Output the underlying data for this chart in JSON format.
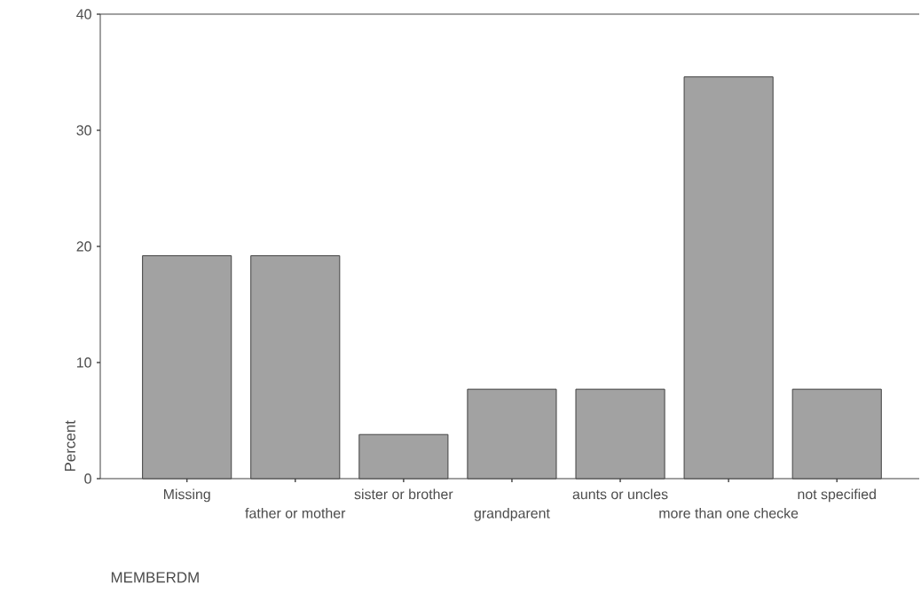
{
  "chart_data": {
    "type": "bar",
    "xlabel": "MEMBERDM",
    "ylabel": "Percent",
    "categories": [
      "Missing",
      "father or mother",
      "sister or brother",
      "grandparent",
      "aunts or uncles",
      "more than one checke",
      "not specified"
    ],
    "values": [
      19.2,
      19.2,
      3.8,
      7.7,
      7.7,
      34.6,
      7.7
    ],
    "color": "#a2a2a2",
    "ylim": [
      0,
      40
    ],
    "yticks": [
      0,
      10,
      20,
      30,
      40
    ]
  }
}
